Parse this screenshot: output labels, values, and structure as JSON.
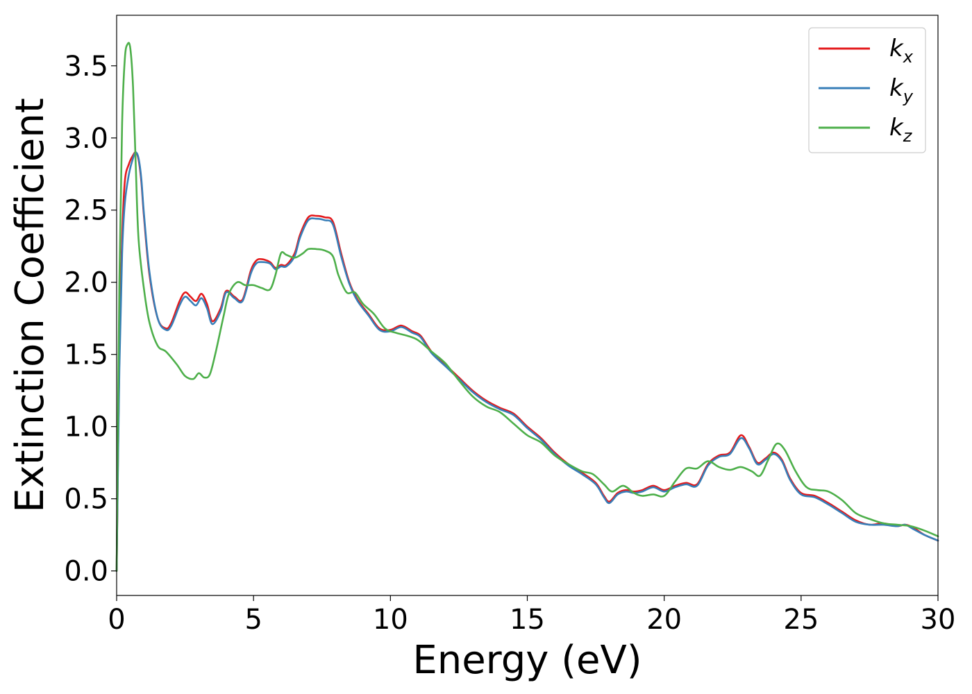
{
  "chart_data": {
    "type": "line",
    "xlabel": "Energy (eV)",
    "ylabel": "Extinction Coefficient",
    "xlim": [
      0,
      30
    ],
    "ylim": [
      -0.17,
      3.85
    ],
    "xticks": [
      0,
      5,
      10,
      15,
      20,
      25,
      30
    ],
    "xtick_labels": [
      "0",
      "5",
      "10",
      "15",
      "20",
      "25",
      "30"
    ],
    "yticks": [
      0.0,
      0.5,
      1.0,
      1.5,
      2.0,
      2.5,
      3.0,
      3.5
    ],
    "ytick_labels": [
      "0.0",
      "0.5",
      "1.0",
      "1.5",
      "2.0",
      "2.5",
      "3.0",
      "3.5"
    ],
    "grid": false,
    "legend_position": "top-right",
    "series": [
      {
        "name": "k_x",
        "label_base": "k",
        "label_sub": "x",
        "color": "#e41a1c",
        "x": [
          0,
          0.1,
          0.2,
          0.3,
          0.45,
          0.6,
          0.7,
          0.8,
          0.9,
          1.0,
          1.2,
          1.5,
          1.8,
          2.0,
          2.3,
          2.5,
          2.7,
          2.9,
          3.1,
          3.3,
          3.5,
          3.8,
          4.0,
          4.3,
          4.6,
          4.9,
          5.1,
          5.3,
          5.6,
          5.8,
          6.0,
          6.2,
          6.5,
          6.7,
          7.0,
          7.3,
          7.6,
          7.9,
          8.2,
          8.5,
          8.8,
          9.2,
          9.6,
          10.0,
          10.4,
          10.8,
          11.1,
          11.5,
          12.0,
          12.5,
          13.0,
          13.5,
          14.0,
          14.5,
          15.0,
          15.5,
          16.0,
          16.5,
          17.0,
          17.5,
          17.8,
          18.0,
          18.3,
          18.6,
          18.9,
          19.2,
          19.6,
          20.0,
          20.4,
          20.8,
          21.2,
          21.6,
          22.0,
          22.4,
          22.8,
          23.1,
          23.4,
          23.7,
          24.0,
          24.3,
          24.6,
          25.0,
          25.5,
          26.0,
          26.5,
          27.0,
          27.5,
          28.0,
          28.5,
          28.8,
          29.1,
          29.5,
          30.0
        ],
        "y": [
          0,
          1.5,
          2.3,
          2.7,
          2.82,
          2.88,
          2.9,
          2.85,
          2.7,
          2.45,
          2.05,
          1.75,
          1.68,
          1.72,
          1.87,
          1.93,
          1.9,
          1.87,
          1.92,
          1.85,
          1.73,
          1.82,
          1.94,
          1.9,
          1.88,
          2.08,
          2.15,
          2.16,
          2.14,
          2.1,
          2.12,
          2.12,
          2.2,
          2.33,
          2.45,
          2.46,
          2.45,
          2.42,
          2.2,
          2.0,
          1.88,
          1.78,
          1.68,
          1.67,
          1.7,
          1.66,
          1.63,
          1.52,
          1.43,
          1.34,
          1.25,
          1.18,
          1.13,
          1.09,
          1.0,
          0.92,
          0.82,
          0.74,
          0.68,
          0.61,
          0.52,
          0.48,
          0.54,
          0.56,
          0.55,
          0.56,
          0.59,
          0.56,
          0.59,
          0.61,
          0.6,
          0.74,
          0.8,
          0.82,
          0.94,
          0.86,
          0.75,
          0.78,
          0.82,
          0.77,
          0.64,
          0.54,
          0.52,
          0.47,
          0.41,
          0.35,
          0.32,
          0.33,
          0.31,
          0.32,
          0.3,
          0.25,
          0.21
        ]
      },
      {
        "name": "k_y",
        "label_base": "k",
        "label_sub": "y",
        "color": "#377eb8",
        "x": [
          0,
          0.1,
          0.2,
          0.3,
          0.45,
          0.6,
          0.7,
          0.8,
          0.9,
          1.0,
          1.2,
          1.5,
          1.8,
          2.0,
          2.3,
          2.5,
          2.7,
          2.9,
          3.1,
          3.3,
          3.5,
          3.8,
          4.0,
          4.3,
          4.6,
          4.9,
          5.1,
          5.3,
          5.6,
          5.8,
          6.0,
          6.2,
          6.5,
          6.7,
          7.0,
          7.3,
          7.6,
          7.9,
          8.2,
          8.5,
          8.8,
          9.2,
          9.6,
          10.0,
          10.4,
          10.8,
          11.1,
          11.5,
          12.0,
          12.5,
          13.0,
          13.5,
          14.0,
          14.5,
          15.0,
          15.5,
          16.0,
          16.5,
          17.0,
          17.5,
          17.8,
          18.0,
          18.3,
          18.6,
          18.9,
          19.2,
          19.6,
          20.0,
          20.4,
          20.8,
          21.2,
          21.6,
          22.0,
          22.4,
          22.8,
          23.1,
          23.4,
          23.7,
          24.0,
          24.3,
          24.6,
          25.0,
          25.5,
          26.0,
          26.5,
          27.0,
          27.5,
          28.0,
          28.5,
          28.8,
          29.1,
          29.5,
          30.0
        ],
        "y": [
          0,
          1.4,
          2.2,
          2.55,
          2.75,
          2.86,
          2.9,
          2.86,
          2.72,
          2.47,
          2.07,
          1.75,
          1.67,
          1.7,
          1.84,
          1.9,
          1.87,
          1.84,
          1.89,
          1.82,
          1.71,
          1.8,
          1.93,
          1.89,
          1.87,
          2.06,
          2.13,
          2.14,
          2.13,
          2.09,
          2.11,
          2.11,
          2.18,
          2.31,
          2.43,
          2.44,
          2.43,
          2.4,
          2.18,
          1.99,
          1.87,
          1.77,
          1.67,
          1.66,
          1.69,
          1.65,
          1.62,
          1.51,
          1.42,
          1.33,
          1.24,
          1.17,
          1.12,
          1.08,
          0.99,
          0.91,
          0.81,
          0.73,
          0.67,
          0.6,
          0.51,
          0.47,
          0.53,
          0.55,
          0.54,
          0.55,
          0.58,
          0.55,
          0.58,
          0.6,
          0.59,
          0.73,
          0.79,
          0.81,
          0.92,
          0.85,
          0.74,
          0.77,
          0.81,
          0.76,
          0.63,
          0.53,
          0.51,
          0.46,
          0.4,
          0.34,
          0.32,
          0.32,
          0.31,
          0.32,
          0.29,
          0.25,
          0.21
        ]
      },
      {
        "name": "k_z",
        "label_base": "k",
        "label_sub": "z",
        "color": "#4daf4a",
        "x": [
          0,
          0.1,
          0.2,
          0.3,
          0.4,
          0.5,
          0.6,
          0.7,
          0.8,
          1.0,
          1.2,
          1.5,
          1.8,
          2.2,
          2.5,
          2.8,
          3.0,
          3.2,
          3.4,
          3.6,
          3.9,
          4.1,
          4.4,
          4.7,
          5.0,
          5.3,
          5.6,
          5.8,
          6.0,
          6.2,
          6.5,
          6.8,
          7.0,
          7.3,
          7.6,
          7.9,
          8.1,
          8.4,
          8.7,
          9.0,
          9.4,
          9.8,
          10.2,
          10.6,
          11.0,
          11.5,
          12.0,
          12.5,
          13.0,
          13.5,
          14.0,
          14.5,
          15.0,
          15.5,
          16.0,
          16.5,
          17.0,
          17.4,
          17.8,
          18.1,
          18.5,
          18.9,
          19.2,
          19.6,
          20.0,
          20.4,
          20.8,
          21.2,
          21.6,
          22.0,
          22.4,
          22.8,
          23.2,
          23.5,
          23.8,
          24.1,
          24.4,
          24.8,
          25.2,
          25.6,
          26.0,
          26.5,
          27.0,
          27.5,
          28.0,
          28.5,
          29.0,
          29.5,
          30.0
        ],
        "y": [
          0,
          2.0,
          3.1,
          3.55,
          3.65,
          3.62,
          3.35,
          2.8,
          2.3,
          1.95,
          1.72,
          1.56,
          1.52,
          1.43,
          1.35,
          1.33,
          1.37,
          1.34,
          1.36,
          1.5,
          1.76,
          1.92,
          2.0,
          1.98,
          1.98,
          1.96,
          1.95,
          2.05,
          2.2,
          2.19,
          2.17,
          2.2,
          2.23,
          2.23,
          2.22,
          2.18,
          2.05,
          1.93,
          1.93,
          1.85,
          1.78,
          1.68,
          1.65,
          1.63,
          1.6,
          1.52,
          1.44,
          1.32,
          1.21,
          1.14,
          1.1,
          1.02,
          0.94,
          0.89,
          0.8,
          0.74,
          0.69,
          0.67,
          0.6,
          0.55,
          0.59,
          0.54,
          0.52,
          0.53,
          0.52,
          0.62,
          0.71,
          0.71,
          0.76,
          0.72,
          0.7,
          0.72,
          0.69,
          0.66,
          0.77,
          0.88,
          0.84,
          0.69,
          0.58,
          0.56,
          0.55,
          0.49,
          0.4,
          0.36,
          0.33,
          0.32,
          0.31,
          0.28,
          0.24
        ]
      }
    ]
  }
}
